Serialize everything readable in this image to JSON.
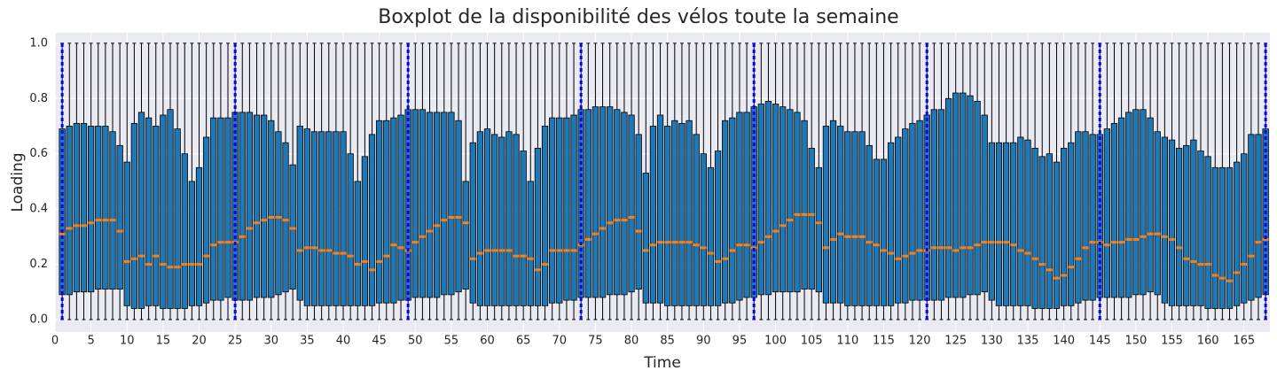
{
  "chart_data": {
    "type": "box",
    "title": "Boxplot de la disponibilité des vélos toute la semaine",
    "xlabel": "Time",
    "ylabel": "Loading",
    "x": [
      1,
      2,
      3,
      4,
      5,
      6,
      7,
      8,
      9,
      10,
      11,
      12,
      13,
      14,
      15,
      16,
      17,
      18,
      19,
      20,
      21,
      22,
      23,
      24,
      25,
      26,
      27,
      28,
      29,
      30,
      31,
      32,
      33,
      34,
      35,
      36,
      37,
      38,
      39,
      40,
      41,
      42,
      43,
      44,
      45,
      46,
      47,
      48,
      49,
      50,
      51,
      52,
      53,
      54,
      55,
      56,
      57,
      58,
      59,
      60,
      61,
      62,
      63,
      64,
      65,
      66,
      67,
      68,
      69,
      70,
      71,
      72,
      73,
      74,
      75,
      76,
      77,
      78,
      79,
      80,
      81,
      82,
      83,
      84,
      85,
      86,
      87,
      88,
      89,
      90,
      91,
      92,
      93,
      94,
      95,
      96,
      97,
      98,
      99,
      100,
      101,
      102,
      103,
      104,
      105,
      106,
      107,
      108,
      109,
      110,
      111,
      112,
      113,
      114,
      115,
      116,
      117,
      118,
      119,
      120,
      121,
      122,
      123,
      124,
      125,
      126,
      127,
      128,
      129,
      130,
      131,
      132,
      133,
      134,
      135,
      136,
      137,
      138,
      139,
      140,
      141,
      142,
      143,
      144,
      145,
      146,
      147,
      148,
      149,
      150,
      151,
      152,
      153,
      154,
      155,
      156,
      157,
      158,
      159,
      160,
      161,
      162,
      163,
      164,
      165,
      166,
      167,
      168
    ],
    "whislo": [
      0,
      0,
      0,
      0,
      0,
      0,
      0,
      0,
      0,
      0,
      0,
      0,
      0,
      0,
      0,
      0,
      0,
      0,
      0,
      0,
      0,
      0,
      0,
      0,
      0,
      0,
      0,
      0,
      0,
      0,
      0,
      0,
      0,
      0,
      0,
      0,
      0,
      0,
      0,
      0,
      0,
      0,
      0,
      0,
      0,
      0,
      0,
      0,
      0,
      0,
      0,
      0,
      0,
      0,
      0,
      0,
      0,
      0,
      0,
      0,
      0,
      0,
      0,
      0,
      0,
      0,
      0,
      0,
      0,
      0,
      0,
      0,
      0,
      0,
      0,
      0,
      0,
      0,
      0,
      0,
      0,
      0,
      0,
      0,
      0,
      0,
      0,
      0,
      0,
      0,
      0,
      0,
      0,
      0,
      0,
      0,
      0,
      0,
      0,
      0,
      0,
      0,
      0,
      0,
      0,
      0,
      0,
      0,
      0,
      0,
      0,
      0,
      0,
      0,
      0,
      0,
      0,
      0,
      0,
      0,
      0,
      0,
      0,
      0,
      0,
      0,
      0,
      0,
      0,
      0,
      0,
      0,
      0,
      0,
      0,
      0,
      0,
      0,
      0,
      0,
      0,
      0,
      0,
      0,
      0,
      0,
      0,
      0,
      0,
      0,
      0,
      0,
      0,
      0,
      0,
      0,
      0,
      0,
      0,
      0,
      0,
      0,
      0,
      0,
      0,
      0,
      0,
      0
    ],
    "q1": [
      0.09,
      0.09,
      0.1,
      0.1,
      0.1,
      0.11,
      0.11,
      0.11,
      0.11,
      0.05,
      0.04,
      0.04,
      0.05,
      0.05,
      0.04,
      0.04,
      0.04,
      0.04,
      0.05,
      0.05,
      0.06,
      0.07,
      0.07,
      0.08,
      0.07,
      0.07,
      0.07,
      0.08,
      0.08,
      0.08,
      0.09,
      0.1,
      0.11,
      0.07,
      0.05,
      0.05,
      0.05,
      0.05,
      0.05,
      0.05,
      0.05,
      0.05,
      0.05,
      0.05,
      0.06,
      0.06,
      0.06,
      0.07,
      0.07,
      0.08,
      0.08,
      0.08,
      0.08,
      0.09,
      0.09,
      0.1,
      0.11,
      0.06,
      0.05,
      0.05,
      0.05,
      0.05,
      0.05,
      0.05,
      0.05,
      0.05,
      0.05,
      0.05,
      0.06,
      0.06,
      0.07,
      0.07,
      0.08,
      0.08,
      0.08,
      0.08,
      0.09,
      0.09,
      0.09,
      0.1,
      0.11,
      0.06,
      0.06,
      0.06,
      0.05,
      0.05,
      0.05,
      0.05,
      0.05,
      0.05,
      0.05,
      0.05,
      0.06,
      0.06,
      0.07,
      0.08,
      0.08,
      0.09,
      0.09,
      0.1,
      0.1,
      0.1,
      0.1,
      0.11,
      0.11,
      0.1,
      0.06,
      0.06,
      0.06,
      0.05,
      0.05,
      0.05,
      0.05,
      0.05,
      0.05,
      0.05,
      0.06,
      0.06,
      0.07,
      0.07,
      0.07,
      0.07,
      0.07,
      0.08,
      0.08,
      0.08,
      0.09,
      0.09,
      0.1,
      0.07,
      0.05,
      0.05,
      0.05,
      0.05,
      0.05,
      0.04,
      0.04,
      0.04,
      0.04,
      0.05,
      0.05,
      0.06,
      0.07,
      0.07,
      0.08,
      0.08,
      0.08,
      0.08,
      0.08,
      0.09,
      0.09,
      0.1,
      0.09,
      0.06,
      0.05,
      0.05,
      0.05,
      0.05,
      0.05,
      0.04,
      0.04,
      0.04,
      0.04,
      0.05,
      0.06,
      0.07,
      0.08,
      0.09
    ],
    "median": [
      0.31,
      0.33,
      0.34,
      0.34,
      0.35,
      0.36,
      0.36,
      0.36,
      0.32,
      0.21,
      0.22,
      0.23,
      0.2,
      0.23,
      0.2,
      0.19,
      0.19,
      0.2,
      0.2,
      0.2,
      0.23,
      0.27,
      0.28,
      0.28,
      0.28,
      0.3,
      0.33,
      0.35,
      0.36,
      0.37,
      0.37,
      0.36,
      0.33,
      0.25,
      0.26,
      0.26,
      0.25,
      0.25,
      0.24,
      0.24,
      0.23,
      0.2,
      0.21,
      0.18,
      0.21,
      0.23,
      0.27,
      0.26,
      0.25,
      0.28,
      0.3,
      0.32,
      0.34,
      0.36,
      0.37,
      0.37,
      0.35,
      0.22,
      0.24,
      0.25,
      0.25,
      0.25,
      0.25,
      0.23,
      0.23,
      0.22,
      0.18,
      0.2,
      0.25,
      0.25,
      0.25,
      0.25,
      0.27,
      0.29,
      0.31,
      0.33,
      0.35,
      0.36,
      0.36,
      0.37,
      0.32,
      0.25,
      0.27,
      0.28,
      0.28,
      0.28,
      0.28,
      0.28,
      0.27,
      0.26,
      0.24,
      0.21,
      0.22,
      0.25,
      0.27,
      0.27,
      0.26,
      0.28,
      0.3,
      0.32,
      0.34,
      0.36,
      0.38,
      0.38,
      0.38,
      0.35,
      0.26,
      0.29,
      0.31,
      0.3,
      0.3,
      0.3,
      0.28,
      0.27,
      0.25,
      0.24,
      0.22,
      0.23,
      0.24,
      0.25,
      0.25,
      0.26,
      0.26,
      0.26,
      0.25,
      0.26,
      0.26,
      0.27,
      0.28,
      0.28,
      0.28,
      0.28,
      0.27,
      0.25,
      0.24,
      0.22,
      0.2,
      0.18,
      0.15,
      0.16,
      0.19,
      0.22,
      0.26,
      0.28,
      0.28,
      0.27,
      0.28,
      0.28,
      0.29,
      0.29,
      0.3,
      0.31,
      0.31,
      0.3,
      0.29,
      0.26,
      0.22,
      0.21,
      0.2,
      0.2,
      0.16,
      0.15,
      0.14,
      0.17,
      0.2,
      0.23,
      0.28,
      0.29
    ],
    "q3": [
      0.69,
      0.7,
      0.71,
      0.71,
      0.7,
      0.7,
      0.7,
      0.68,
      0.63,
      0.57,
      0.71,
      0.75,
      0.73,
      0.7,
      0.74,
      0.76,
      0.69,
      0.6,
      0.5,
      0.55,
      0.66,
      0.73,
      0.73,
      0.73,
      0.75,
      0.75,
      0.75,
      0.74,
      0.74,
      0.72,
      0.68,
      0.64,
      0.56,
      0.7,
      0.69,
      0.68,
      0.68,
      0.68,
      0.68,
      0.68,
      0.6,
      0.5,
      0.59,
      0.67,
      0.72,
      0.72,
      0.73,
      0.74,
      0.76,
      0.76,
      0.76,
      0.75,
      0.75,
      0.75,
      0.75,
      0.72,
      0.5,
      0.64,
      0.68,
      0.69,
      0.67,
      0.66,
      0.68,
      0.67,
      0.61,
      0.5,
      0.62,
      0.7,
      0.73,
      0.73,
      0.73,
      0.74,
      0.76,
      0.76,
      0.77,
      0.77,
      0.77,
      0.76,
      0.75,
      0.74,
      0.67,
      0.53,
      0.7,
      0.74,
      0.7,
      0.72,
      0.71,
      0.72,
      0.67,
      0.6,
      0.55,
      0.61,
      0.72,
      0.73,
      0.75,
      0.75,
      0.77,
      0.78,
      0.79,
      0.78,
      0.77,
      0.76,
      0.75,
      0.72,
      0.62,
      0.55,
      0.7,
      0.72,
      0.7,
      0.68,
      0.68,
      0.68,
      0.63,
      0.58,
      0.58,
      0.64,
      0.66,
      0.69,
      0.71,
      0.72,
      0.74,
      0.76,
      0.76,
      0.8,
      0.82,
      0.82,
      0.81,
      0.79,
      0.74,
      0.64,
      0.64,
      0.64,
      0.64,
      0.66,
      0.65,
      0.62,
      0.59,
      0.6,
      0.57,
      0.62,
      0.64,
      0.68,
      0.68,
      0.67,
      0.67,
      0.69,
      0.71,
      0.73,
      0.75,
      0.76,
      0.76,
      0.73,
      0.68,
      0.66,
      0.65,
      0.62,
      0.63,
      0.65,
      0.61,
      0.59,
      0.55,
      0.55,
      0.55,
      0.57,
      0.6,
      0.67,
      0.67,
      0.69
    ],
    "whishi": [
      1,
      1,
      1,
      1,
      1,
      1,
      1,
      1,
      1,
      1,
      1,
      1,
      1,
      1,
      1,
      1,
      1,
      1,
      1,
      1,
      1,
      1,
      1,
      1,
      1,
      1,
      1,
      1,
      1,
      1,
      1,
      1,
      1,
      1,
      1,
      1,
      1,
      1,
      1,
      1,
      1,
      1,
      1,
      1,
      1,
      1,
      1,
      1,
      1,
      1,
      1,
      1,
      1,
      1,
      1,
      1,
      1,
      1,
      1,
      1,
      1,
      1,
      1,
      1,
      1,
      1,
      1,
      1,
      1,
      1,
      1,
      1,
      1,
      1,
      1,
      1,
      1,
      1,
      1,
      1,
      1,
      1,
      1,
      1,
      1,
      1,
      1,
      1,
      1,
      1,
      1,
      1,
      1,
      1,
      1,
      1,
      1,
      1,
      1,
      1,
      1,
      1,
      1,
      1,
      1,
      1,
      1,
      1,
      1,
      1,
      1,
      1,
      1,
      1,
      1,
      1,
      1,
      1,
      1,
      1,
      1,
      1,
      1,
      1,
      1,
      1,
      1,
      1,
      1,
      1,
      1,
      1,
      1,
      1,
      1,
      1,
      1,
      1,
      1,
      1,
      1,
      1,
      1,
      1,
      1,
      1,
      1,
      1,
      1,
      1,
      1,
      1,
      1,
      1,
      1,
      1,
      1,
      1,
      1,
      1,
      1,
      1,
      1,
      1,
      1,
      1,
      1,
      1
    ],
    "box_color": "#1f77b4",
    "median_color": "#ff7f0e",
    "vlines": [
      1,
      25,
      49,
      73,
      97,
      121,
      145,
      168
    ],
    "vline_color": "#0000ff",
    "xlim": [
      0,
      168.6
    ],
    "xticks": [
      0,
      5,
      10,
      15,
      20,
      25,
      30,
      35,
      40,
      45,
      50,
      55,
      60,
      65,
      70,
      75,
      80,
      85,
      90,
      95,
      100,
      105,
      110,
      115,
      120,
      125,
      130,
      135,
      140,
      145,
      150,
      155,
      160,
      165
    ],
    "ylim": [
      -0.045,
      1.038
    ],
    "yticks": [
      {
        "value": 0,
        "label": "0.0"
      },
      0.2,
      0.4,
      0.6,
      0.8,
      {
        "value": 1,
        "label": "1.0"
      }
    ],
    "grid": true
  }
}
